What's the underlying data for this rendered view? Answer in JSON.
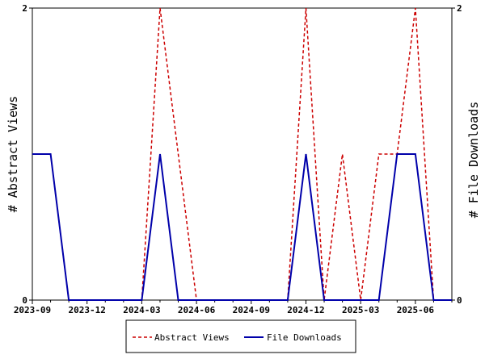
{
  "chart_data": {
    "type": "line",
    "x_ticks": [
      "2023-09",
      "2023-12",
      "2024-03",
      "2024-06",
      "2024-09",
      "2024-12",
      "2025-03",
      "2025-06"
    ],
    "x_range": [
      "2023-09",
      "2025-08"
    ],
    "y_left": {
      "label": "# Abstract Views",
      "ylim": [
        0,
        2
      ],
      "ticks": [
        "0",
        "2"
      ]
    },
    "y_right": {
      "label": "# File Downloads",
      "ylim": [
        0,
        2
      ],
      "ticks": [
        "0",
        "2"
      ]
    },
    "grid": false,
    "legend_position": "bottom-center",
    "series": [
      {
        "name": "Abstract Views",
        "color": "#cc0000",
        "dash": "dashed",
        "axis": "left",
        "x": [
          "2023-09",
          "2023-10",
          "2023-11",
          "2023-12",
          "2024-01",
          "2024-02",
          "2024-03",
          "2024-04",
          "2024-05",
          "2024-06",
          "2024-07",
          "2024-08",
          "2024-09",
          "2024-10",
          "2024-11",
          "2024-12",
          "2025-01",
          "2025-02",
          "2025-03",
          "2025-04",
          "2025-05",
          "2025-06",
          "2025-07",
          "2025-08"
        ],
        "values": [
          1,
          1,
          0,
          0,
          0,
          0,
          0,
          2,
          1,
          0,
          0,
          0,
          0,
          0,
          0,
          2,
          0,
          1,
          0,
          1,
          1,
          2,
          0,
          0
        ]
      },
      {
        "name": "File Downloads",
        "color": "#0000aa",
        "dash": "solid",
        "axis": "right",
        "x": [
          "2023-09",
          "2023-10",
          "2023-11",
          "2023-12",
          "2024-01",
          "2024-02",
          "2024-03",
          "2024-04",
          "2024-05",
          "2024-06",
          "2024-07",
          "2024-08",
          "2024-09",
          "2024-10",
          "2024-11",
          "2024-12",
          "2025-01",
          "2025-02",
          "2025-03",
          "2025-04",
          "2025-05",
          "2025-06",
          "2025-07",
          "2025-08"
        ],
        "values": [
          1,
          1,
          0,
          0,
          0,
          0,
          0,
          1,
          0,
          0,
          0,
          0,
          0,
          0,
          0,
          1,
          0,
          0,
          0,
          0,
          1,
          1,
          0,
          0
        ]
      }
    ]
  }
}
